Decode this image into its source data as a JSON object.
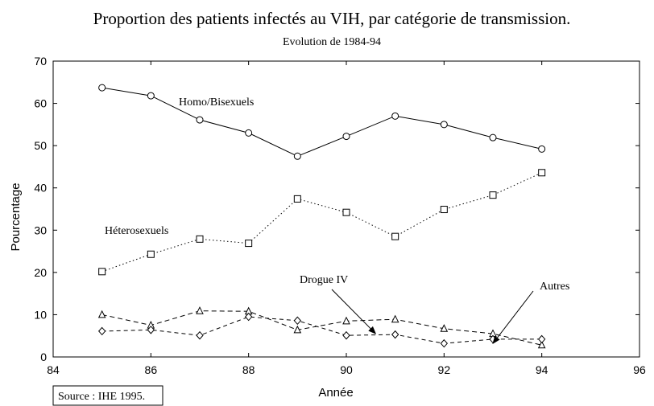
{
  "chart_data": {
    "type": "line",
    "title": "Proportion des patients infectés au VIH, par catégorie de transmission.",
    "subtitle": "Evolution de 1984-94",
    "xlabel": "Année",
    "ylabel": "Pourcentage",
    "xlim": [
      84,
      96
    ],
    "ylim": [
      0,
      70
    ],
    "x_ticks": [
      "84",
      "86",
      "88",
      "90",
      "92",
      "94",
      "96"
    ],
    "y_ticks": [
      "0",
      "10",
      "20",
      "30",
      "40",
      "50",
      "60",
      "70"
    ],
    "grid": false,
    "source": "Source : IHE 1995.",
    "colors": {
      "line": "#000000",
      "background": "#ffffff"
    },
    "series": [
      {
        "name": "Homo/Bisexuels",
        "marker": "circle",
        "style": "solid",
        "x": [
          85,
          86,
          87,
          88,
          89,
          90,
          91,
          92,
          93,
          94
        ],
        "values": [
          63.7,
          61.8,
          56.1,
          53.0,
          47.5,
          52.2,
          57.0,
          55.0,
          51.9,
          49.2
        ]
      },
      {
        "name": "Héterosexuels",
        "marker": "square",
        "style": "dotted",
        "x": [
          85,
          86,
          87,
          88,
          89,
          90,
          91,
          92,
          93,
          94
        ],
        "values": [
          20.2,
          24.3,
          27.9,
          26.9,
          37.4,
          34.2,
          28.5,
          34.9,
          38.3,
          43.6
        ]
      },
      {
        "name": "Drogue IV",
        "marker": "triangle",
        "style": "dashed",
        "x": [
          85,
          86,
          87,
          88,
          89,
          90,
          91,
          92,
          93,
          94
        ],
        "values": [
          10.0,
          7.5,
          10.9,
          10.8,
          6.4,
          8.5,
          8.9,
          6.7,
          5.5,
          2.8
        ]
      },
      {
        "name": "Autres",
        "marker": "diamond",
        "style": "dashed-short",
        "x": [
          85,
          86,
          87,
          88,
          89,
          90,
          91,
          92,
          93,
          94
        ],
        "values": [
          6.1,
          6.4,
          5.1,
          9.5,
          8.6,
          5.1,
          5.3,
          3.2,
          4.2,
          4.2
        ]
      }
    ],
    "annotations": [
      {
        "text": "Homo/Bisexuels",
        "series": "Homo/Bisexuels"
      },
      {
        "text": "Héterosexuels",
        "series": "Héterosexuels"
      },
      {
        "text": "Drogue IV",
        "series": "Drogue IV",
        "arrow_to": [
          90.6,
          5.5
        ]
      },
      {
        "text": "Autres",
        "series": "Autres",
        "arrow_to": [
          93.0,
          3.2
        ]
      }
    ]
  }
}
